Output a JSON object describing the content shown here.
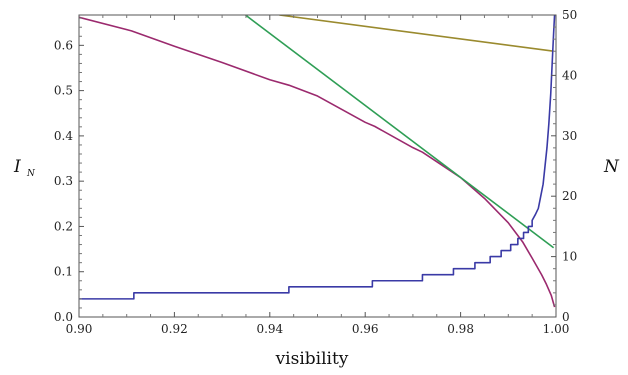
{
  "chart_data": {
    "type": "line",
    "xlabel": "visibility",
    "ylabel": "I",
    "ylabel_subscript": "N",
    "y2label": "N",
    "xlim": [
      0.9,
      1.0
    ],
    "ylim": [
      0,
      0.667
    ],
    "y2lim": [
      0,
      50
    ],
    "grid": false,
    "x_ticks": [
      0.9,
      0.92,
      0.94,
      0.96,
      0.98,
      1.0
    ],
    "x_tick_labels": [
      "0.90",
      "0.92",
      "0.94",
      "0.96",
      "0.98",
      "1.00"
    ],
    "y_ticks": [
      0.0,
      0.1,
      0.2,
      0.3,
      0.4,
      0.5,
      0.6
    ],
    "y_tick_labels": [
      "0.0",
      "0.1",
      "0.2",
      "0.3",
      "0.4",
      "0.5",
      "0.6"
    ],
    "y2_ticks": [
      0,
      10,
      20,
      30,
      40,
      50
    ],
    "y2_tick_labels": [
      "0",
      "10",
      "20",
      "30",
      "40",
      "50"
    ],
    "series": [
      {
        "color": "#9b2a6e",
        "axis": "left",
        "points": [
          [
            0.9,
            0.662
          ],
          [
            0.911,
            0.632
          ],
          [
            0.92,
            0.598
          ],
          [
            0.93,
            0.562
          ],
          [
            0.94,
            0.524
          ],
          [
            0.944,
            0.512
          ],
          [
            0.95,
            0.488
          ],
          [
            0.96,
            0.43
          ],
          [
            0.962,
            0.421
          ],
          [
            0.97,
            0.374
          ],
          [
            0.972,
            0.364
          ],
          [
            0.98,
            0.308
          ],
          [
            0.985,
            0.262
          ],
          [
            0.99,
            0.208
          ],
          [
            0.993,
            0.166
          ],
          [
            0.995,
            0.13
          ],
          [
            0.997,
            0.093
          ],
          [
            0.998,
            0.072
          ],
          [
            0.999,
            0.048
          ],
          [
            0.9997,
            0.022
          ]
        ]
      },
      {
        "color": "#2f9e55",
        "axis": "left",
        "points": [
          [
            0.9349,
            0.667
          ],
          [
            0.9995,
            0.153
          ]
        ]
      },
      {
        "color": "#9a8a2e",
        "axis": "left",
        "points": [
          [
            0.942,
            0.667
          ],
          [
            0.9995,
            0.587
          ]
        ]
      },
      {
        "color": "#3a3aa6",
        "axis": "right",
        "step": true,
        "points": [
          [
            0.9,
            3
          ],
          [
            0.9115,
            3
          ],
          [
            0.9115,
            4
          ],
          [
            0.944,
            4
          ],
          [
            0.944,
            5
          ],
          [
            0.9615,
            5
          ],
          [
            0.9615,
            6
          ],
          [
            0.972,
            6
          ],
          [
            0.972,
            7
          ],
          [
            0.9785,
            7
          ],
          [
            0.9785,
            8
          ],
          [
            0.983,
            8
          ],
          [
            0.983,
            9
          ],
          [
            0.9862,
            9
          ],
          [
            0.9862,
            10
          ],
          [
            0.9885,
            10
          ],
          [
            0.9885,
            11
          ],
          [
            0.9905,
            11
          ],
          [
            0.9905,
            12
          ],
          [
            0.992,
            12
          ],
          [
            0.992,
            13
          ],
          [
            0.9932,
            13
          ],
          [
            0.9932,
            14
          ],
          [
            0.9942,
            14
          ],
          [
            0.9942,
            15
          ],
          [
            0.995,
            15
          ],
          [
            0.995,
            16
          ],
          [
            0.9957,
            17
          ],
          [
            0.9963,
            18
          ],
          [
            0.9968,
            20
          ],
          [
            0.9973,
            22
          ],
          [
            0.9977,
            25
          ],
          [
            0.9981,
            28
          ],
          [
            0.9985,
            32
          ],
          [
            0.9989,
            37
          ],
          [
            0.9992,
            42
          ],
          [
            0.9995,
            47
          ],
          [
            0.9997,
            50
          ]
        ]
      }
    ]
  }
}
